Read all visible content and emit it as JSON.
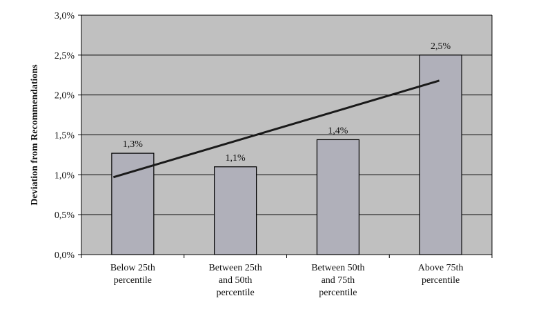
{
  "chart_data": {
    "type": "bar",
    "categories": [
      [
        "Below 25th",
        "percentile"
      ],
      [
        "Between 25th",
        "and 50th",
        "percentile"
      ],
      [
        "Between 50th",
        "and 75th",
        "percentile"
      ],
      [
        "Above 75th",
        "percentile"
      ]
    ],
    "values": [
      1.27,
      1.1,
      1.44,
      2.5
    ],
    "data_labels": [
      "1,3%",
      "1,1%",
      "1,4%",
      "2,5%"
    ],
    "trendline": {
      "type": "linear",
      "start": 0.97,
      "end": 2.18
    },
    "ylabel": "Deviation from Recommendations",
    "ylim": [
      0,
      3.0
    ],
    "yticks": [
      0,
      0.5,
      1.0,
      1.5,
      2.0,
      2.5,
      3.0
    ],
    "ytick_labels": [
      "0,0%",
      "0,5%",
      "1,0%",
      "1,5%",
      "2,0%",
      "2,5%",
      "3,0%"
    ],
    "grid": true,
    "colors": {
      "plot_bg": "#c0c0c0",
      "bar_fill": "#b0b0ba",
      "bar_stroke": "#000000",
      "trend": "#1a1a1a",
      "grid": "#000000"
    }
  }
}
